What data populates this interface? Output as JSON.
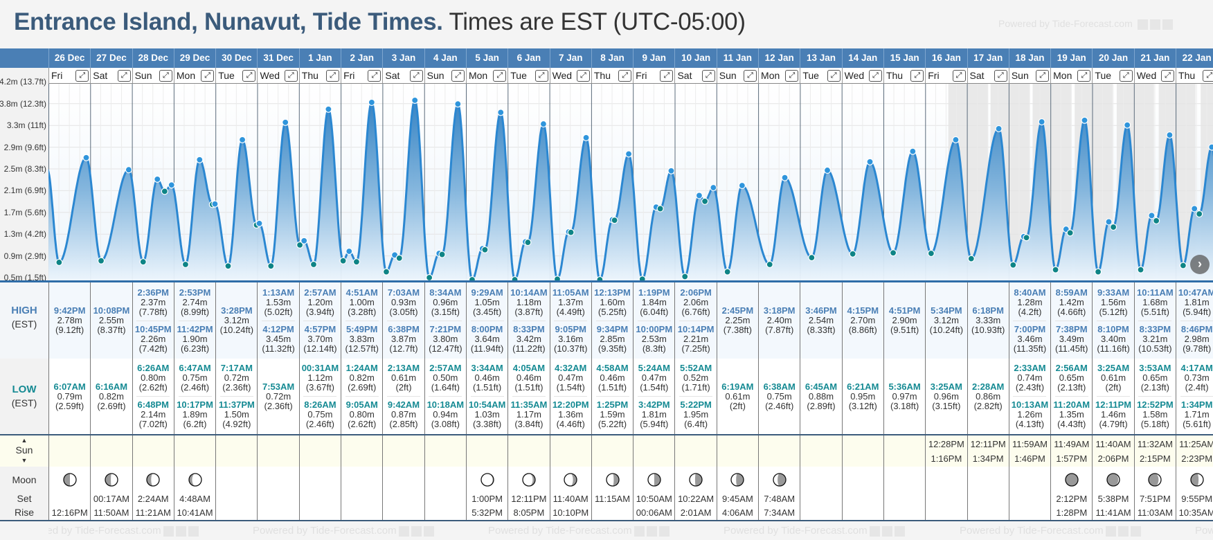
{
  "title": {
    "location": "Entrance Island, Nunavut, Tide Times.",
    "timezone": "Times are EST (UTC-05:00)"
  },
  "watermark": "Powered by Tide-Forecast.com",
  "labels": {
    "high": "HIGH",
    "low": "LOW",
    "est": "(EST)",
    "sun": "Sun",
    "moon": "Moon",
    "set": "Set",
    "rise": "Rise",
    "sun_up": "▲",
    "sun_down": "▼",
    "expand": "⤢",
    "next": "›"
  },
  "colors": {
    "header": "#4a7fb5",
    "high": "#4a7fb5",
    "low": "#158a93",
    "curve": "#2b87d1",
    "high_dot": "#2f95dc",
    "low_dot": "#0e8486",
    "night": "#e9e9e9"
  },
  "chart": {
    "y_ticks": [
      "0.5m (1.5ft)",
      "0.9m (2.9ft)",
      "1.3m (4.2ft)",
      "1.7m (5.6ft)",
      "2.1m (6.9ft)",
      "2.5m (8.3ft)",
      "2.9m (9.6ft)",
      "3.3m (11ft)",
      "3.8m (12.3ft)",
      "4.2m (13.7ft)"
    ],
    "y_values_m": [
      0.5,
      0.9,
      1.3,
      1.7,
      2.1,
      2.5,
      2.9,
      3.3,
      3.8,
      4.2
    ]
  },
  "days": [
    {
      "date": "26 Dec",
      "weekday": "Fri",
      "highs": [
        {
          "time": "9:42PM",
          "m": "2.78m",
          "ft": "(9.12ft)"
        }
      ],
      "lows": [
        {
          "time": "6:07AM",
          "m": "0.79m",
          "ft": "(2.59ft)"
        }
      ],
      "sun": null,
      "moon": {
        "set": "",
        "rise": "12:16PM",
        "phase": {
          "shade": 0.5,
          "side": "left"
        }
      }
    },
    {
      "date": "27 Dec",
      "weekday": "Sat",
      "highs": [
        {
          "time": "10:08PM",
          "m": "2.55m",
          "ft": "(8.37ft)"
        }
      ],
      "lows": [
        {
          "time": "6:16AM",
          "m": "0.82m",
          "ft": "(2.69ft)"
        }
      ],
      "sun": null,
      "moon": {
        "set": "00:17AM",
        "rise": "11:50AM",
        "phase": {
          "shade": 0.45,
          "side": "left"
        }
      }
    },
    {
      "date": "28 Dec",
      "weekday": "Sun",
      "highs": [
        {
          "time": "2:36PM",
          "m": "2.37m",
          "ft": "(7.78ft)"
        },
        {
          "time": "10:45PM",
          "m": "2.26m",
          "ft": "(7.42ft)"
        }
      ],
      "lows": [
        {
          "time": "6:26AM",
          "m": "0.80m",
          "ft": "(2.62ft)"
        },
        {
          "time": "6:48PM",
          "m": "2.14m",
          "ft": "(7.02ft)"
        }
      ],
      "sun": null,
      "moon": {
        "set": "2:24AM",
        "rise": "11:21AM",
        "phase": {
          "shade": 0.35,
          "side": "left"
        }
      }
    },
    {
      "date": "29 Dec",
      "weekday": "Mon",
      "highs": [
        {
          "time": "2:53PM",
          "m": "2.74m",
          "ft": "(8.99ft)"
        },
        {
          "time": "11:42PM",
          "m": "1.90m",
          "ft": "(6.23ft)"
        }
      ],
      "lows": [
        {
          "time": "6:47AM",
          "m": "0.75m",
          "ft": "(2.46ft)"
        },
        {
          "time": "10:17PM",
          "m": "1.89m",
          "ft": "(6.2ft)"
        }
      ],
      "sun": null,
      "moon": {
        "set": "4:48AM",
        "rise": "10:41AM",
        "phase": {
          "shade": 0.25,
          "side": "left"
        }
      }
    },
    {
      "date": "30 Dec",
      "weekday": "Tue",
      "highs": [
        {
          "time": "3:28PM",
          "m": "3.12m",
          "ft": "(10.24ft)"
        }
      ],
      "lows": [
        {
          "time": "7:17AM",
          "m": "0.72m",
          "ft": "(2.36ft)"
        },
        {
          "time": "11:37PM",
          "m": "1.50m",
          "ft": "(4.92ft)"
        }
      ],
      "sun": null,
      "moon": null
    },
    {
      "date": "31 Dec",
      "weekday": "Wed",
      "highs": [
        {
          "time": "1:13AM",
          "m": "1.53m",
          "ft": "(5.02ft)"
        },
        {
          "time": "4:12PM",
          "m": "3.45m",
          "ft": "(11.32ft)"
        }
      ],
      "lows": [
        {
          "time": "7:53AM",
          "m": "0.72m",
          "ft": "(2.36ft)"
        }
      ],
      "sun": null,
      "moon": null
    },
    {
      "date": "1 Jan",
      "weekday": "Thu",
      "highs": [
        {
          "time": "2:57AM",
          "m": "1.20m",
          "ft": "(3.94ft)"
        },
        {
          "time": "4:57PM",
          "m": "3.70m",
          "ft": "(12.14ft)"
        }
      ],
      "lows": [
        {
          "time": "00:31AM",
          "m": "1.12m",
          "ft": "(3.67ft)"
        },
        {
          "time": "8:26AM",
          "m": "0.75m",
          "ft": "(2.46ft)"
        }
      ],
      "sun": null,
      "moon": null
    },
    {
      "date": "2 Jan",
      "weekday": "Fri",
      "highs": [
        {
          "time": "4:51AM",
          "m": "1.00m",
          "ft": "(3.28ft)"
        },
        {
          "time": "5:49PM",
          "m": "3.83m",
          "ft": "(12.57ft)"
        }
      ],
      "lows": [
        {
          "time": "1:24AM",
          "m": "0.82m",
          "ft": "(2.69ft)"
        },
        {
          "time": "9:05AM",
          "m": "0.80m",
          "ft": "(2.62ft)"
        }
      ],
      "sun": null,
      "moon": null
    },
    {
      "date": "3 Jan",
      "weekday": "Sat",
      "highs": [
        {
          "time": "7:03AM",
          "m": "0.93m",
          "ft": "(3.05ft)"
        },
        {
          "time": "6:38PM",
          "m": "3.87m",
          "ft": "(12.7ft)"
        }
      ],
      "lows": [
        {
          "time": "2:13AM",
          "m": "0.61m",
          "ft": "(2ft)"
        },
        {
          "time": "9:42AM",
          "m": "0.87m",
          "ft": "(2.85ft)"
        }
      ],
      "sun": null,
      "moon": null
    },
    {
      "date": "4 Jan",
      "weekday": "Sun",
      "highs": [
        {
          "time": "8:34AM",
          "m": "0.96m",
          "ft": "(3.15ft)"
        },
        {
          "time": "7:21PM",
          "m": "3.80m",
          "ft": "(12.47ft)"
        }
      ],
      "lows": [
        {
          "time": "2:57AM",
          "m": "0.50m",
          "ft": "(1.64ft)"
        },
        {
          "time": "10:18AM",
          "m": "0.94m",
          "ft": "(3.08ft)"
        }
      ],
      "sun": null,
      "moon": null
    },
    {
      "date": "5 Jan",
      "weekday": "Mon",
      "highs": [
        {
          "time": "9:29AM",
          "m": "1.05m",
          "ft": "(3.45ft)"
        },
        {
          "time": "8:00PM",
          "m": "3.64m",
          "ft": "(11.94ft)"
        }
      ],
      "lows": [
        {
          "time": "3:34AM",
          "m": "0.46m",
          "ft": "(1.51ft)"
        },
        {
          "time": "10:54AM",
          "m": "1.03m",
          "ft": "(3.38ft)"
        }
      ],
      "sun": null,
      "moon": {
        "set": "1:00PM",
        "rise": "5:32PM",
        "phase": {
          "shade": 0.08,
          "side": "right"
        }
      }
    },
    {
      "date": "6 Jan",
      "weekday": "Tue",
      "highs": [
        {
          "time": "10:14AM",
          "m": "1.18m",
          "ft": "(3.87ft)"
        },
        {
          "time": "8:33PM",
          "m": "3.42m",
          "ft": "(11.22ft)"
        }
      ],
      "lows": [
        {
          "time": "4:05AM",
          "m": "0.46m",
          "ft": "(1.51ft)"
        },
        {
          "time": "11:35AM",
          "m": "1.17m",
          "ft": "(3.84ft)"
        }
      ],
      "sun": null,
      "moon": {
        "set": "12:11PM",
        "rise": "8:05PM",
        "phase": {
          "shade": 0.2,
          "side": "right"
        }
      }
    },
    {
      "date": "7 Jan",
      "weekday": "Wed",
      "highs": [
        {
          "time": "11:05AM",
          "m": "1.37m",
          "ft": "(4.49ft)"
        },
        {
          "time": "9:05PM",
          "m": "3.16m",
          "ft": "(10.37ft)"
        }
      ],
      "lows": [
        {
          "time": "4:32AM",
          "m": "0.47m",
          "ft": "(1.54ft)"
        },
        {
          "time": "12:20PM",
          "m": "1.36m",
          "ft": "(4.46ft)"
        }
      ],
      "sun": null,
      "moon": {
        "set": "11:40AM",
        "rise": "10:10PM",
        "phase": {
          "shade": 0.3,
          "side": "right"
        }
      }
    },
    {
      "date": "8 Jan",
      "weekday": "Thu",
      "highs": [
        {
          "time": "12:13PM",
          "m": "1.60m",
          "ft": "(5.25ft)"
        },
        {
          "time": "9:34PM",
          "m": "2.85m",
          "ft": "(9.35ft)"
        }
      ],
      "lows": [
        {
          "time": "4:58AM",
          "m": "0.46m",
          "ft": "(1.51ft)"
        },
        {
          "time": "1:25PM",
          "m": "1.59m",
          "ft": "(5.22ft)"
        }
      ],
      "sun": null,
      "moon": {
        "set": "11:15AM",
        "rise": "",
        "phase": {
          "shade": 0.42,
          "side": "right"
        }
      }
    },
    {
      "date": "9 Jan",
      "weekday": "Fri",
      "highs": [
        {
          "time": "1:19PM",
          "m": "1.84m",
          "ft": "(6.04ft)"
        },
        {
          "time": "10:00PM",
          "m": "2.53m",
          "ft": "(8.3ft)"
        }
      ],
      "lows": [
        {
          "time": "5:24AM",
          "m": "0.47m",
          "ft": "(1.54ft)"
        },
        {
          "time": "3:42PM",
          "m": "1.81m",
          "ft": "(5.94ft)"
        }
      ],
      "sun": null,
      "moon": {
        "set": "10:50AM",
        "rise": "00:06AM",
        "phase": {
          "shade": 0.5,
          "side": "right"
        }
      }
    },
    {
      "date": "10 Jan",
      "weekday": "Sat",
      "highs": [
        {
          "time": "2:06PM",
          "m": "2.06m",
          "ft": "(6.76ft)"
        },
        {
          "time": "10:14PM",
          "m": "2.21m",
          "ft": "(7.25ft)"
        }
      ],
      "lows": [
        {
          "time": "5:52AM",
          "m": "0.52m",
          "ft": "(1.71ft)"
        },
        {
          "time": "5:22PM",
          "m": "1.95m",
          "ft": "(6.4ft)"
        }
      ],
      "sun": null,
      "moon": {
        "set": "10:22AM",
        "rise": "2:01AM",
        "phase": {
          "shade": 0.56,
          "side": "right"
        }
      }
    },
    {
      "date": "11 Jan",
      "weekday": "Sun",
      "highs": [
        {
          "time": "2:45PM",
          "m": "2.25m",
          "ft": "(7.38ft)"
        }
      ],
      "lows": [
        {
          "time": "6:19AM",
          "m": "0.61m",
          "ft": "(2ft)"
        }
      ],
      "sun": null,
      "moon": {
        "set": "9:45AM",
        "rise": "4:06AM",
        "phase": {
          "shade": 0.6,
          "side": "right"
        }
      }
    },
    {
      "date": "12 Jan",
      "weekday": "Mon",
      "highs": [
        {
          "time": "3:18PM",
          "m": "2.40m",
          "ft": "(7.87ft)"
        }
      ],
      "lows": [
        {
          "time": "6:38AM",
          "m": "0.75m",
          "ft": "(2.46ft)"
        }
      ],
      "sun": null,
      "moon": {
        "set": "7:48AM",
        "rise": "7:34AM",
        "phase": {
          "shade": 0.66,
          "side": "right"
        }
      }
    },
    {
      "date": "13 Jan",
      "weekday": "Tue",
      "highs": [
        {
          "time": "3:46PM",
          "m": "2.54m",
          "ft": "(8.33ft)"
        }
      ],
      "lows": [
        {
          "time": "6:45AM",
          "m": "0.88m",
          "ft": "(2.89ft)"
        }
      ],
      "sun": null,
      "moon": null
    },
    {
      "date": "14 Jan",
      "weekday": "Wed",
      "highs": [
        {
          "time": "4:15PM",
          "m": "2.70m",
          "ft": "(8.86ft)"
        }
      ],
      "lows": [
        {
          "time": "6:21AM",
          "m": "0.95m",
          "ft": "(3.12ft)"
        }
      ],
      "sun": null,
      "moon": null
    },
    {
      "date": "15 Jan",
      "weekday": "Thu",
      "highs": [
        {
          "time": "4:51PM",
          "m": "2.90m",
          "ft": "(9.51ft)"
        }
      ],
      "lows": [
        {
          "time": "5:36AM",
          "m": "0.97m",
          "ft": "(3.18ft)"
        }
      ],
      "sun": null,
      "moon": null
    },
    {
      "date": "16 Jan",
      "weekday": "Fri",
      "highs": [
        {
          "time": "5:34PM",
          "m": "3.12m",
          "ft": "(10.24ft)"
        }
      ],
      "lows": [
        {
          "time": "3:25AM",
          "m": "0.96m",
          "ft": "(3.15ft)"
        }
      ],
      "sun": {
        "rise": "12:28PM",
        "set": "1:16PM"
      },
      "moon": null
    },
    {
      "date": "17 Jan",
      "weekday": "Sat",
      "highs": [
        {
          "time": "6:18PM",
          "m": "3.33m",
          "ft": "(10.93ft)"
        }
      ],
      "lows": [
        {
          "time": "2:28AM",
          "m": "0.86m",
          "ft": "(2.82ft)"
        }
      ],
      "sun": {
        "rise": "12:11PM",
        "set": "1:34PM"
      },
      "moon": null
    },
    {
      "date": "18 Jan",
      "weekday": "Sun",
      "highs": [
        {
          "time": "8:40AM",
          "m": "1.28m",
          "ft": "(4.2ft)"
        },
        {
          "time": "7:00PM",
          "m": "3.46m",
          "ft": "(11.35ft)"
        }
      ],
      "lows": [
        {
          "time": "2:33AM",
          "m": "0.74m",
          "ft": "(2.43ft)"
        },
        {
          "time": "10:13AM",
          "m": "1.26m",
          "ft": "(4.13ft)"
        }
      ],
      "sun": {
        "rise": "11:59AM",
        "set": "1:46PM"
      },
      "moon": null
    },
    {
      "date": "19 Jan",
      "weekday": "Mon",
      "highs": [
        {
          "time": "8:59AM",
          "m": "1.42m",
          "ft": "(4.66ft)"
        },
        {
          "time": "7:38PM",
          "m": "3.49m",
          "ft": "(11.45ft)"
        }
      ],
      "lows": [
        {
          "time": "2:56AM",
          "m": "0.65m",
          "ft": "(2.13ft)"
        },
        {
          "time": "11:20AM",
          "m": "1.35m",
          "ft": "(4.43ft)"
        }
      ],
      "sun": {
        "rise": "11:49AM",
        "set": "1:57PM"
      },
      "moon": {
        "set": "2:12PM",
        "rise": "1:28PM",
        "phase": {
          "shade": 1.0,
          "side": "left"
        }
      }
    },
    {
      "date": "20 Jan",
      "weekday": "Tue",
      "highs": [
        {
          "time": "9:33AM",
          "m": "1.56m",
          "ft": "(5.12ft)"
        },
        {
          "time": "8:10PM",
          "m": "3.40m",
          "ft": "(11.16ft)"
        }
      ],
      "lows": [
        {
          "time": "3:25AM",
          "m": "0.61m",
          "ft": "(2ft)"
        },
        {
          "time": "12:11PM",
          "m": "1.46m",
          "ft": "(4.79ft)"
        }
      ],
      "sun": {
        "rise": "11:40AM",
        "set": "2:06PM"
      },
      "moon": {
        "set": "5:38PM",
        "rise": "11:41AM",
        "phase": {
          "shade": 0.9,
          "side": "left"
        }
      }
    },
    {
      "date": "21 Jan",
      "weekday": "Wed",
      "highs": [
        {
          "time": "10:11AM",
          "m": "1.68m",
          "ft": "(5.51ft)"
        },
        {
          "time": "8:33PM",
          "m": "3.21m",
          "ft": "(10.53ft)"
        }
      ],
      "lows": [
        {
          "time": "3:53AM",
          "m": "0.65m",
          "ft": "(2.13ft)"
        },
        {
          "time": "12:52PM",
          "m": "1.58m",
          "ft": "(5.18ft)"
        }
      ],
      "sun": {
        "rise": "11:32AM",
        "set": "2:15PM"
      },
      "moon": {
        "set": "7:51PM",
        "rise": "11:03AM",
        "phase": {
          "shade": 0.8,
          "side": "left"
        }
      }
    },
    {
      "date": "22 Jan",
      "weekday": "Thu",
      "highs": [
        {
          "time": "10:47AM",
          "m": "1.81m",
          "ft": "(5.94ft)"
        },
        {
          "time": "8:46PM",
          "m": "2.98m",
          "ft": "(9.78ft)"
        }
      ],
      "lows": [
        {
          "time": "4:17AM",
          "m": "0.73m",
          "ft": "(2.4ft)"
        },
        {
          "time": "1:34PM",
          "m": "1.71m",
          "ft": "(5.61ft)"
        }
      ],
      "sun": {
        "rise": "11:25AM",
        "set": "2:23PM"
      },
      "moon": {
        "set": "9:55PM",
        "rise": "10:35AM",
        "phase": {
          "shade": 0.62,
          "side": "left"
        }
      }
    }
  ]
}
